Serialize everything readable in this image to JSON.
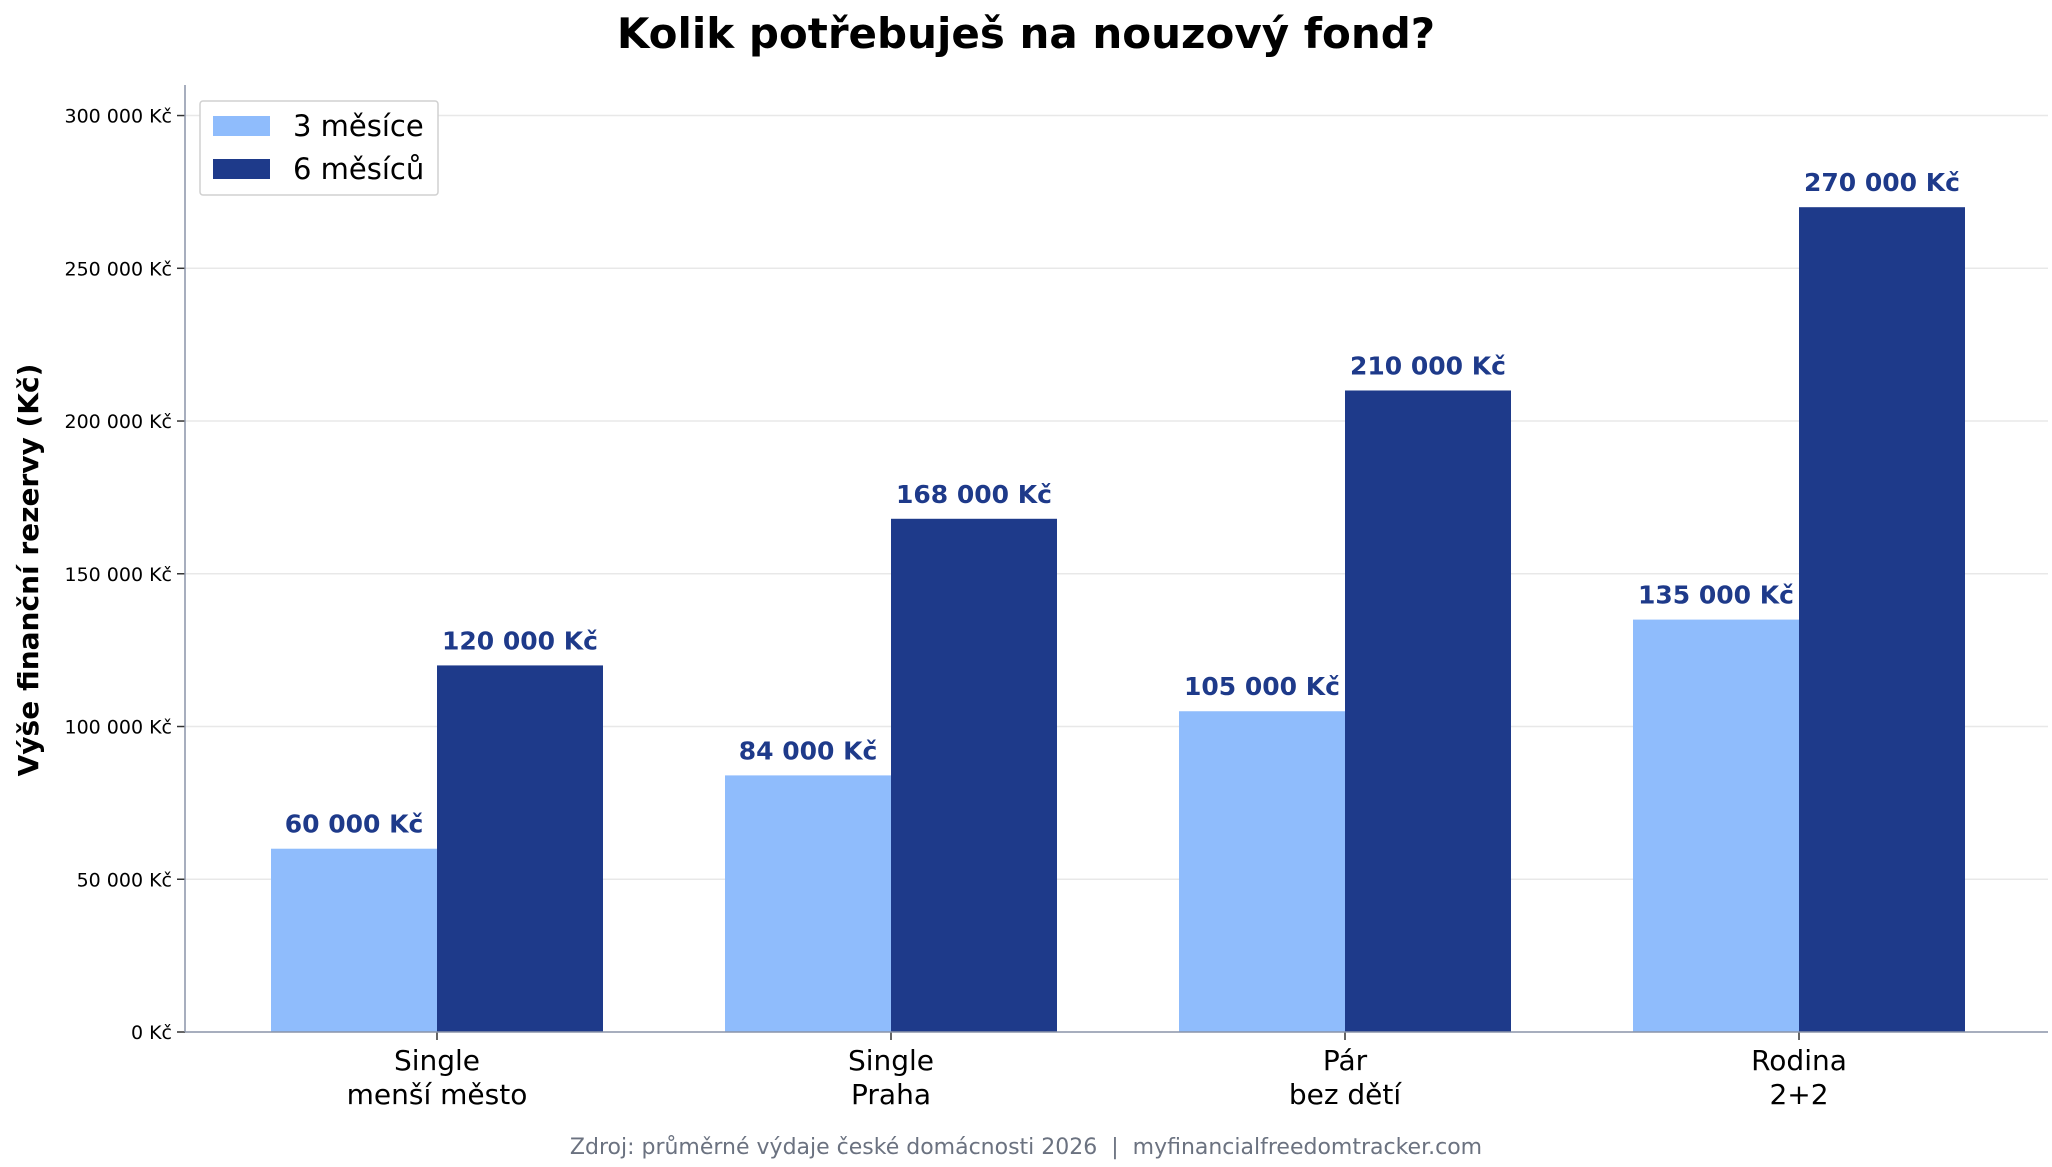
{
  "chart_data": {
    "type": "bar",
    "title": "Kolik potřebuješ na nouzový fond?",
    "xlabel": "",
    "ylabel": "Výše finanční rezervy (Kč)",
    "categories": [
      [
        "Single",
        "menší město"
      ],
      [
        "Single",
        "Praha"
      ],
      [
        "Pár",
        "bez dětí"
      ],
      [
        "Rodina",
        "2+2"
      ]
    ],
    "series": [
      {
        "name": "3 měsíce",
        "color": "#8fbcfc",
        "values": [
          60000,
          84000,
          105000,
          135000
        ],
        "labels": [
          "60 000 Kč",
          "84 000 Kč",
          "105 000 Kč",
          "135 000 Kč"
        ]
      },
      {
        "name": "6 měsíců",
        "color": "#1e3a8a",
        "values": [
          120000,
          168000,
          210000,
          270000
        ],
        "labels": [
          "120 000 Kč",
          "168 000 Kč",
          "210 000 Kč",
          "270 000 Kč"
        ]
      }
    ],
    "data_label_color": "#1e3a8a",
    "ylim": [
      0,
      310000
    ],
    "yticks": [
      0,
      50000,
      100000,
      150000,
      200000,
      250000,
      300000
    ],
    "ytick_labels": [
      "0 Kč",
      "50 000 Kč",
      "100 000 Kč",
      "150 000 Kč",
      "200 000 Kč",
      "250 000 Kč",
      "300 000 Kč"
    ],
    "grid": "horizontal",
    "legend": "top-left",
    "source": "Zdroj: průměrné výdaje české domácnosti 2026  |  myfinancialfreedomtracker.com"
  }
}
